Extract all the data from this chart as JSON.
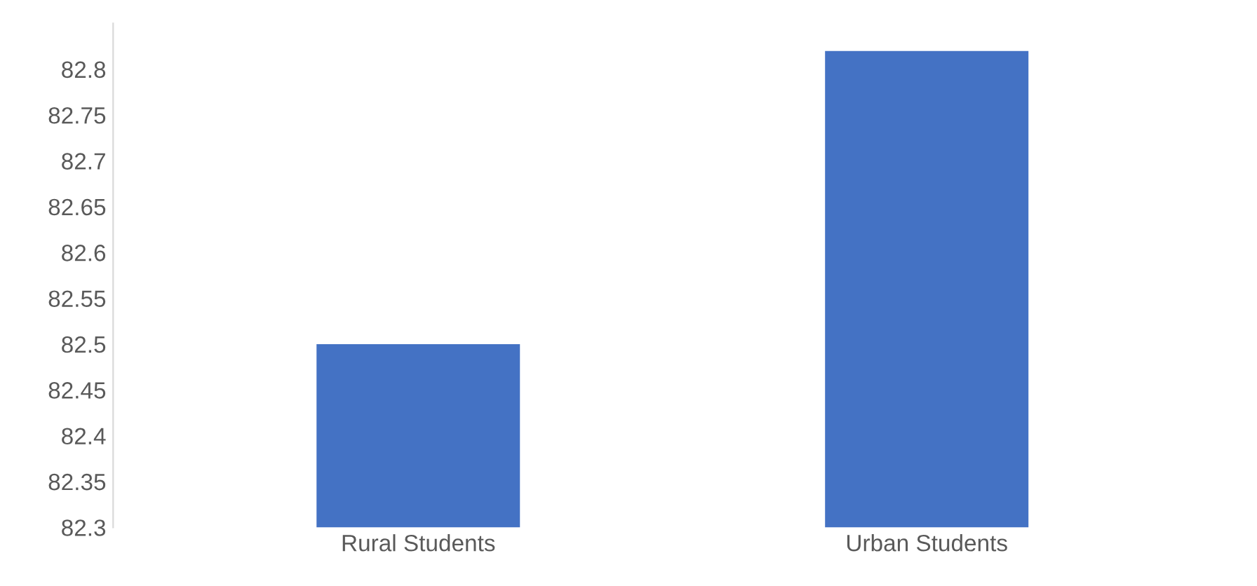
{
  "chart_data": {
    "type": "bar",
    "categories": [
      "Rural Students",
      "Urban Students"
    ],
    "values": [
      82.5,
      82.82
    ],
    "color": "#4472c4",
    "ylim": [
      82.3,
      82.85
    ],
    "yticks": [
      82.3,
      82.35,
      82.4,
      82.45,
      82.5,
      82.55,
      82.6,
      82.65,
      82.7,
      82.75,
      82.8
    ],
    "grid": false
  }
}
